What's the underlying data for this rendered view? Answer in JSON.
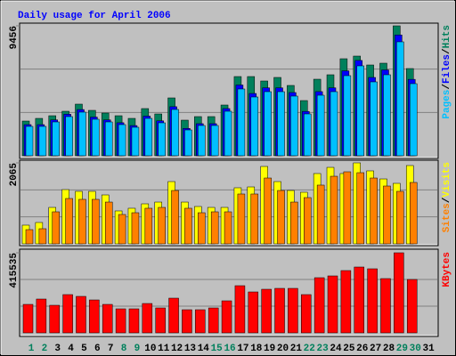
{
  "chart_data": {
    "type": "bar",
    "title": "Daily usage for April 2006",
    "separator": "/",
    "categories": [
      "1",
      "2",
      "3",
      "4",
      "5",
      "6",
      "7",
      "8",
      "9",
      "10",
      "11",
      "12",
      "13",
      "14",
      "15",
      "16",
      "17",
      "18",
      "19",
      "20",
      "21",
      "22",
      "23",
      "24",
      "25",
      "26",
      "27",
      "28",
      "29",
      "30",
      "31"
    ],
    "category_colors": [
      "#00805c",
      "#00805c",
      "#000000",
      "#000000",
      "#000000",
      "#000000",
      "#000000",
      "#00805c",
      "#00805c",
      "#000000",
      "#000000",
      "#000000",
      "#000000",
      "#000000",
      "#00805c",
      "#00805c",
      "#000000",
      "#000000",
      "#000000",
      "#000000",
      "#000000",
      "#00805c",
      "#00805c",
      "#000000",
      "#000000",
      "#000000",
      "#000000",
      "#000000",
      "#00805c",
      "#00805c",
      "#000000"
    ],
    "panels": [
      {
        "ylim": [
          0,
          9456
        ],
        "yticks": [
          9456
        ],
        "series": [
          {
            "name": "Hits",
            "color": "#00805c",
            "values": [
              2526,
              2720,
              2914,
              3238,
              3757,
              3303,
              3109,
              2914,
              2720,
              3433,
              3044,
              4210,
              2591,
              2850,
              2850,
              3692,
              5764,
              5764,
              5441,
              5700,
              5117,
              4016,
              5570,
              5894,
              7060,
              7254,
              6606,
              6736,
              9456,
              6347,
              null
            ]
          },
          {
            "name": "Files",
            "color": "#0000ff",
            "values": [
              2265,
              2265,
              2609,
              3021,
              3364,
              2815,
              2609,
              2403,
              2197,
              2883,
              2540,
              3570,
              1991,
              2334,
              2334,
              3433,
              5149,
              4532,
              4943,
              4943,
              4600,
              3227,
              4668,
              4943,
              6179,
              6935,
              5699,
              6248,
              8788,
              5561,
              null
            ]
          },
          {
            "name": "Pages",
            "color": "#00c0ff",
            "values": [
              2137,
              2137,
              2461,
              2850,
              3174,
              2656,
              2461,
              2267,
              2073,
              2720,
              2396,
              3368,
              1878,
              2202,
              2202,
              3239,
              4858,
              4275,
              4663,
              4663,
              4340,
              3044,
              4404,
              4663,
              5829,
              6542,
              5376,
              5894,
              8291,
              5246,
              null
            ]
          }
        ]
      },
      {
        "ylim": [
          0,
          2065
        ],
        "yticks": [
          2065
        ],
        "series": [
          {
            "name": "Visits",
            "color": "#ffff00",
            "values": [
              477,
              545,
              930,
              1384,
              1339,
              1339,
              1248,
              840,
              908,
              1021,
              1066,
              1588,
              1066,
              953,
              930,
              930,
              1430,
              1452,
              1974,
              1588,
              1361,
              1316,
              1793,
              1951,
              1793,
              2065,
              1861,
              1656,
              1543,
              1997,
              null
            ]
          },
          {
            "name": "Sites",
            "color": "#ff8000",
            "values": [
              363,
              386,
              817,
              1157,
              1135,
              1135,
              1066,
              749,
              794,
              908,
              930,
              1361,
              908,
              794,
              817,
              817,
              1271,
              1271,
              1679,
              1361,
              1066,
              1180,
              1498,
              1724,
              1838,
              1815,
              1679,
              1475,
              1339,
              1566,
              null
            ]
          }
        ]
      },
      {
        "ylim": [
          0,
          415535
        ],
        "yticks": [
          415535
        ],
        "series": [
          {
            "name": "KBytes",
            "color": "#ff0000",
            "values": [
              147744,
              175446,
              143127,
              198531,
              189297,
              170829,
              147744,
              124659,
              124659,
              152361,
              129276,
              180063,
              120042,
              120042,
              129276,
              166212,
              244701,
              212382,
              226233,
              230850,
              230850,
              198531,
              286254,
              295488,
              323190,
              341658,
              332424,
              281637,
              415535,
              277020,
              null
            ]
          }
        ]
      }
    ]
  }
}
